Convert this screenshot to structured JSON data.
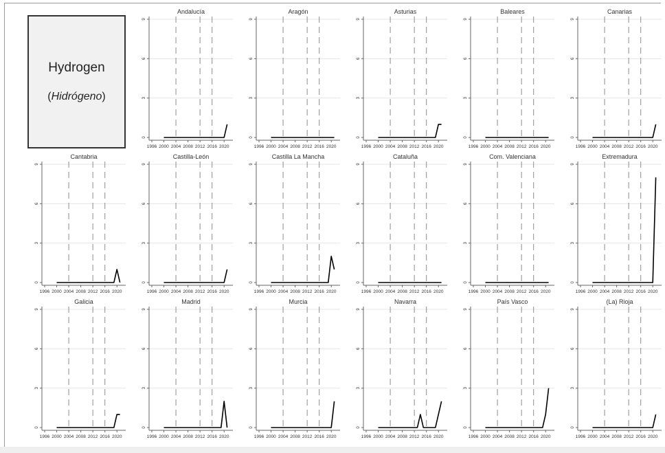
{
  "title_box": {
    "title": "Hydrogen",
    "subtitle_open": "(",
    "subtitle_italic": "Hidrógeno",
    "subtitle_close": ")"
  },
  "colors": {
    "line": "#000000",
    "grid": "#e4e4e4",
    "dashed": "#8c8c8c",
    "axis": "#666666",
    "text": "#333333"
  },
  "chart_data": {
    "type": "line",
    "x_ticks": [
      1996,
      2000,
      2004,
      2008,
      2012,
      2016,
      2020
    ],
    "x_range": [
      1996,
      2022
    ],
    "dashed_verticals": [
      2004,
      2012,
      2016
    ],
    "y_ticks": [
      0,
      3,
      6,
      9
    ],
    "ylim": [
      0,
      9
    ],
    "x": [
      2000,
      2001,
      2002,
      2003,
      2004,
      2005,
      2006,
      2007,
      2008,
      2009,
      2010,
      2011,
      2012,
      2013,
      2014,
      2015,
      2016,
      2017,
      2018,
      2019,
      2020,
      2021
    ],
    "panels": [
      {
        "name": "Andalucía",
        "values": [
          0,
          0,
          0,
          0,
          0,
          0,
          0,
          0,
          0,
          0,
          0,
          0,
          0,
          0,
          0,
          0,
          0,
          0,
          0,
          0,
          0,
          1
        ]
      },
      {
        "name": "Aragón",
        "values": [
          0,
          0,
          0,
          0,
          0,
          0,
          0,
          0,
          0,
          0,
          0,
          0,
          0,
          0,
          0,
          0,
          0,
          0,
          0,
          0,
          0,
          0
        ]
      },
      {
        "name": "Asturias",
        "values": [
          0,
          0,
          0,
          0,
          0,
          0,
          0,
          0,
          0,
          0,
          0,
          0,
          0,
          0,
          0,
          0,
          0,
          0,
          0,
          0,
          1,
          1
        ]
      },
      {
        "name": "Baleares",
        "values": [
          0,
          0,
          0,
          0,
          0,
          0,
          0,
          0,
          0,
          0,
          0,
          0,
          0,
          0,
          0,
          0,
          0,
          0,
          0,
          0,
          0,
          0
        ]
      },
      {
        "name": "Canarias",
        "values": [
          0,
          0,
          0,
          0,
          0,
          0,
          0,
          0,
          0,
          0,
          0,
          0,
          0,
          0,
          0,
          0,
          0,
          0,
          0,
          0,
          0,
          1
        ]
      },
      {
        "name": "Cantabria",
        "values": [
          0,
          0,
          0,
          0,
          0,
          0,
          0,
          0,
          0,
          0,
          0,
          0,
          0,
          0,
          0,
          0,
          0,
          0,
          0,
          0,
          1,
          0
        ]
      },
      {
        "name": "Castilla-León",
        "values": [
          0,
          0,
          0,
          0,
          0,
          0,
          0,
          0,
          0,
          0,
          0,
          0,
          0,
          0,
          0,
          0,
          0,
          0,
          0,
          0,
          0,
          1
        ]
      },
      {
        "name": "Castilla La Mancha",
        "values": [
          0,
          0,
          0,
          0,
          0,
          0,
          0,
          0,
          0,
          0,
          0,
          0,
          0,
          0,
          0,
          0,
          0,
          0,
          0,
          0,
          2,
          1
        ]
      },
      {
        "name": "Cataluña",
        "values": [
          0,
          0,
          0,
          0,
          0,
          0,
          0,
          0,
          0,
          0,
          0,
          0,
          0,
          0,
          0,
          0,
          0,
          0,
          0,
          0,
          0,
          0
        ]
      },
      {
        "name": "Com. Valenciana",
        "values": [
          0,
          0,
          0,
          0,
          0,
          0,
          0,
          0,
          0,
          0,
          0,
          0,
          0,
          0,
          0,
          0,
          0,
          0,
          0,
          0,
          0,
          0
        ]
      },
      {
        "name": "Extremadura",
        "values": [
          0,
          0,
          0,
          0,
          0,
          0,
          0,
          0,
          0,
          0,
          0,
          0,
          0,
          0,
          0,
          0,
          0,
          0,
          0,
          0,
          0,
          8
        ]
      },
      {
        "name": "Galicia",
        "values": [
          0,
          0,
          0,
          0,
          0,
          0,
          0,
          0,
          0,
          0,
          0,
          0,
          0,
          0,
          0,
          0,
          0,
          0,
          0,
          0,
          1,
          1
        ]
      },
      {
        "name": "Madrid",
        "values": [
          0,
          0,
          0,
          0,
          0,
          0,
          0,
          0,
          0,
          0,
          0,
          0,
          0,
          0,
          0,
          0,
          0,
          0,
          0,
          0,
          2,
          0
        ]
      },
      {
        "name": "Murcia",
        "values": [
          0,
          0,
          0,
          0,
          0,
          0,
          0,
          0,
          0,
          0,
          0,
          0,
          0,
          0,
          0,
          0,
          0,
          0,
          0,
          0,
          0,
          2
        ]
      },
      {
        "name": "Navarra",
        "values": [
          0,
          0,
          0,
          0,
          0,
          0,
          0,
          0,
          0,
          0,
          0,
          0,
          0,
          0,
          1,
          0,
          0,
          0,
          0,
          0,
          1,
          2
        ]
      },
      {
        "name": "País Vasco",
        "values": [
          0,
          0,
          0,
          0,
          0,
          0,
          0,
          0,
          0,
          0,
          0,
          0,
          0,
          0,
          0,
          0,
          0,
          0,
          0,
          0,
          1,
          3
        ]
      },
      {
        "name": "(La) Rioja",
        "values": [
          0,
          0,
          0,
          0,
          0,
          0,
          0,
          0,
          0,
          0,
          0,
          0,
          0,
          0,
          0,
          0,
          0,
          0,
          0,
          0,
          0,
          1
        ]
      }
    ]
  }
}
